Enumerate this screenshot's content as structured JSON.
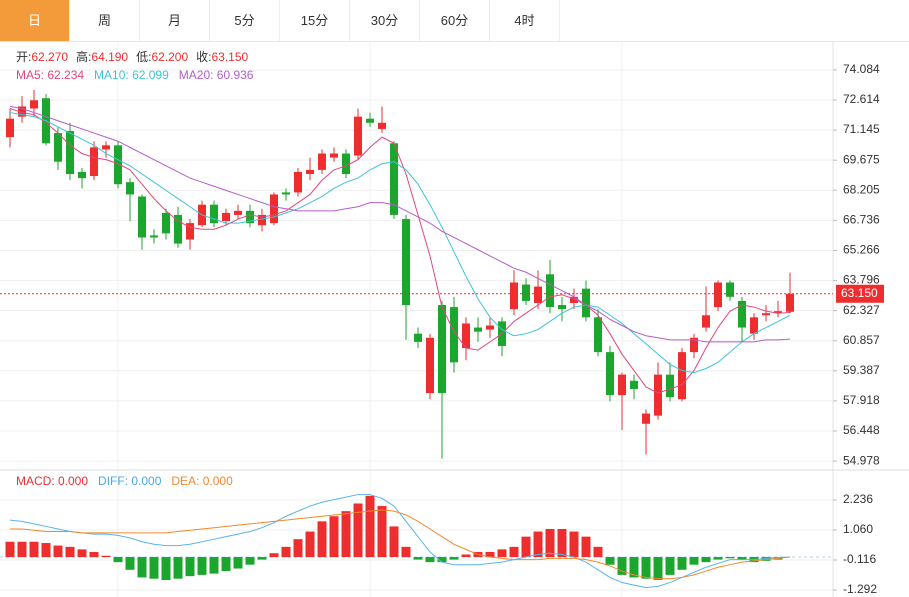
{
  "tabs": [
    "日",
    "周",
    "月",
    "5分",
    "15分",
    "30分",
    "60分",
    "4时"
  ],
  "active_tab": 0,
  "chart_data": [
    {
      "type": "candlestick",
      "info": [
        {
          "label": "开:",
          "value": "62.270"
        },
        {
          "label": "高:",
          "value": "64.190"
        },
        {
          "label": "低:",
          "value": "62.200"
        },
        {
          "label": "收:",
          "value": "63.150"
        }
      ],
      "legend": [
        "MA5: 62.234",
        "MA10: 62.099",
        "MA20: 60.936"
      ],
      "up_color": "#ee2e2e",
      "down_color": "#1ba62d",
      "open": [
        70.8,
        71.8,
        72.2,
        72.7,
        71.0,
        71.1,
        69.1,
        68.9,
        70.2,
        70.4,
        68.6,
        67.9,
        66.0,
        67.1,
        67.0,
        65.8,
        66.5,
        67.5,
        66.7,
        67.0,
        67.2,
        66.5,
        66.6,
        68.1,
        68.1,
        69.0,
        69.2,
        69.8,
        70.0,
        69.9,
        71.7,
        71.2,
        70.5,
        66.8,
        61.2,
        58.3,
        62.6,
        62.5,
        60.5,
        61.5,
        61.4,
        61.8,
        62.4,
        63.6,
        62.7,
        64.1,
        62.6,
        62.7,
        63.4,
        62.0,
        60.3,
        58.2,
        58.9,
        56.8,
        57.2,
        59.2,
        58.0,
        60.3,
        61.5,
        62.5,
        63.7,
        62.8,
        61.2,
        62.1,
        62.2,
        62.27
      ],
      "high": [
        72.2,
        72.8,
        73.1,
        72.9,
        71.3,
        71.5,
        69.3,
        70.6,
        70.6,
        70.6,
        68.8,
        68.0,
        66.3,
        67.3,
        67.4,
        66.8,
        67.7,
        67.7,
        67.3,
        67.5,
        67.5,
        67.3,
        68.1,
        68.3,
        69.3,
        69.8,
        70.2,
        70.3,
        70.2,
        72.2,
        72.0,
        72.3,
        70.6,
        67.0,
        61.5,
        61.2,
        62.8,
        63.0,
        62.0,
        62.0,
        62.0,
        62.0,
        64.3,
        63.9,
        64.3,
        64.8,
        63.0,
        63.4,
        63.8,
        62.4,
        60.6,
        59.3,
        59.2,
        57.5,
        59.8,
        59.8,
        60.5,
        61.2,
        63.5,
        63.8,
        63.8,
        63.0,
        62.2,
        62.6,
        62.8,
        64.19
      ],
      "low": [
        70.3,
        71.5,
        71.8,
        70.4,
        69.2,
        68.7,
        68.3,
        68.7,
        69.8,
        68.3,
        66.7,
        65.3,
        65.6,
        65.8,
        65.4,
        65.3,
        66.4,
        66.4,
        66.5,
        66.8,
        66.4,
        66.2,
        66.5,
        67.7,
        67.9,
        68.7,
        69.0,
        69.6,
        68.8,
        69.7,
        71.3,
        71.0,
        66.8,
        60.9,
        60.5,
        58.0,
        55.1,
        59.3,
        59.9,
        60.8,
        61.0,
        60.1,
        62.1,
        62.6,
        62.4,
        62.2,
        61.8,
        62.4,
        61.8,
        60.1,
        57.9,
        56.5,
        58.0,
        55.3,
        57.0,
        57.9,
        57.9,
        60.0,
        61.3,
        62.3,
        62.8,
        60.8,
        60.9,
        61.8,
        62.0,
        62.2
      ],
      "close": [
        71.7,
        72.3,
        72.6,
        70.5,
        69.6,
        69.0,
        68.8,
        70.3,
        70.4,
        68.5,
        68.0,
        65.9,
        65.9,
        66.1,
        65.6,
        66.6,
        67.5,
        66.6,
        67.1,
        67.2,
        66.6,
        67.0,
        68.0,
        68.0,
        69.1,
        69.2,
        70.0,
        70.0,
        69.0,
        71.8,
        71.5,
        71.5,
        67.0,
        62.6,
        60.8,
        61.0,
        58.3,
        59.8,
        61.7,
        61.3,
        61.6,
        60.6,
        63.7,
        62.8,
        63.5,
        62.5,
        62.4,
        63.0,
        62.0,
        60.3,
        58.2,
        59.2,
        58.5,
        57.3,
        59.2,
        58.1,
        60.3,
        61.0,
        62.1,
        63.7,
        63.0,
        61.5,
        62.0,
        62.2,
        62.3,
        63.15
      ],
      "series": [
        {
          "color": "#e2477d",
          "values": [
            72.2,
            72.0,
            71.9,
            71.5,
            71.0,
            70.4,
            70.0,
            69.8,
            69.7,
            69.5,
            69.2,
            68.5,
            67.8,
            67.2,
            66.7,
            66.4,
            66.3,
            66.3,
            66.5,
            66.8,
            67.0,
            66.9,
            67.0,
            67.2,
            67.6,
            68.0,
            68.7,
            69.2,
            69.4,
            69.7,
            70.3,
            70.8,
            70.5,
            69.0,
            67.0,
            65.0,
            62.5,
            61.3,
            60.5,
            60.4,
            60.8,
            61.2,
            61.8,
            62.2,
            62.6,
            63.0,
            63.1,
            62.9,
            62.6,
            62.1,
            61.2,
            60.2,
            59.4,
            58.6,
            58.3,
            58.5,
            58.7,
            59.4,
            60.5,
            61.5,
            62.3,
            62.6,
            62.5,
            62.3,
            62.2,
            62.234
          ]
        },
        {
          "color": "#3fc3d9",
          "values": [
            72.0,
            71.9,
            71.8,
            71.6,
            71.3,
            71.0,
            70.7,
            70.4,
            70.0,
            69.7,
            69.4,
            69.0,
            68.6,
            68.2,
            67.8,
            67.4,
            67.0,
            66.8,
            66.6,
            66.6,
            66.7,
            66.8,
            66.9,
            67.1,
            67.3,
            67.6,
            67.9,
            68.3,
            68.6,
            68.8,
            69.2,
            69.5,
            69.6,
            69.2,
            68.5,
            67.5,
            66.4,
            65.2,
            64.0,
            62.9,
            62.0,
            61.4,
            61.1,
            61.2,
            61.4,
            61.8,
            62.2,
            62.5,
            62.6,
            62.5,
            62.1,
            61.7,
            61.2,
            60.7,
            60.2,
            59.7,
            59.4,
            59.3,
            59.5,
            59.8,
            60.3,
            60.8,
            61.2,
            61.5,
            61.8,
            62.099
          ]
        },
        {
          "color": "#b45dc9",
          "values": [
            72.3,
            72.2,
            72.0,
            71.8,
            71.6,
            71.4,
            71.2,
            71.0,
            70.8,
            70.6,
            70.3,
            70.0,
            69.7,
            69.4,
            69.1,
            68.8,
            68.6,
            68.4,
            68.2,
            68.0,
            67.8,
            67.6,
            67.4,
            67.3,
            67.2,
            67.2,
            67.2,
            67.2,
            67.3,
            67.4,
            67.6,
            67.6,
            67.5,
            67.2,
            66.9,
            66.6,
            66.2,
            65.9,
            65.6,
            65.3,
            65.0,
            64.7,
            64.4,
            64.2,
            63.9,
            63.6,
            63.3,
            63.0,
            62.6,
            62.3,
            61.9,
            61.6,
            61.3,
            61.1,
            61.0,
            60.9,
            60.9,
            60.9,
            60.8,
            60.8,
            60.8,
            60.8,
            60.8,
            60.9,
            60.9,
            60.936
          ]
        }
      ],
      "last_price": 63.15,
      "last_price_label": "63.150",
      "ylim": [
        54.64,
        75.3
      ],
      "yticks": [
        74.084,
        72.614,
        71.145,
        69.675,
        68.205,
        66.736,
        65.266,
        63.796,
        62.327,
        60.857,
        59.387,
        57.918,
        56.448,
        54.978
      ],
      "grid": true
    },
    {
      "type": "macd",
      "legend": [
        "MACD: 0.000",
        "DIFF: 0.000",
        "DEA: 0.000"
      ],
      "legend_colors": [
        "#ee2e2e",
        "#4aa8e8",
        "#f08a2c"
      ],
      "up_color": "#ee2e2e",
      "down_color": "#1ba62d",
      "values": [
        0.6,
        0.6,
        0.6,
        0.55,
        0.45,
        0.4,
        0.3,
        0.2,
        0.05,
        -0.2,
        -0.5,
        -0.8,
        -0.85,
        -0.9,
        -0.85,
        -0.75,
        -0.7,
        -0.65,
        -0.55,
        -0.45,
        -0.3,
        -0.1,
        0.15,
        0.4,
        0.7,
        1.0,
        1.4,
        1.6,
        1.8,
        2.1,
        2.4,
        2.0,
        1.2,
        0.4,
        -0.1,
        -0.2,
        -0.2,
        -0.1,
        0.1,
        0.2,
        0.2,
        0.3,
        0.4,
        0.8,
        1.0,
        1.1,
        1.1,
        1.0,
        0.8,
        0.4,
        -0.3,
        -0.7,
        -0.8,
        -0.85,
        -0.9,
        -0.7,
        -0.5,
        -0.3,
        -0.2,
        -0.1,
        -0.05,
        -0.1,
        -0.2,
        -0.15,
        -0.1,
        0.0
      ],
      "series": [
        {
          "color": "#5ab4e8",
          "values": [
            1.45,
            1.4,
            1.3,
            1.2,
            1.1,
            1.0,
            0.95,
            0.9,
            0.9,
            0.85,
            0.75,
            0.6,
            0.5,
            0.45,
            0.45,
            0.5,
            0.6,
            0.7,
            0.8,
            0.9,
            1.0,
            1.15,
            1.35,
            1.6,
            1.8,
            2.0,
            2.15,
            2.25,
            2.35,
            2.45,
            2.45,
            2.3,
            2.0,
            1.4,
            0.8,
            0.2,
            -0.2,
            -0.3,
            -0.3,
            -0.3,
            -0.25,
            -0.2,
            -0.1,
            0.0,
            0.1,
            0.15,
            0.1,
            0.0,
            -0.2,
            -0.5,
            -0.8,
            -1.0,
            -1.1,
            -1.2,
            -1.15,
            -1.0,
            -0.8,
            -0.6,
            -0.4,
            -0.25,
            -0.1,
            -0.1,
            -0.1,
            -0.05,
            -0.02,
            0.0
          ]
        },
        {
          "color": "#f08a2c",
          "values": [
            1.1,
            1.1,
            1.05,
            1.0,
            1.0,
            1.0,
            0.95,
            0.95,
            0.95,
            0.95,
            0.95,
            0.95,
            0.95,
            0.95,
            1.0,
            1.05,
            1.1,
            1.15,
            1.2,
            1.25,
            1.3,
            1.35,
            1.4,
            1.45,
            1.5,
            1.55,
            1.6,
            1.65,
            1.7,
            1.75,
            1.8,
            1.85,
            1.8,
            1.65,
            1.4,
            1.1,
            0.8,
            0.5,
            0.3,
            0.1,
            0.0,
            -0.05,
            -0.1,
            -0.1,
            -0.1,
            -0.05,
            -0.05,
            -0.05,
            -0.1,
            -0.2,
            -0.35,
            -0.55,
            -0.7,
            -0.8,
            -0.85,
            -0.85,
            -0.8,
            -0.7,
            -0.55,
            -0.4,
            -0.3,
            -0.2,
            -0.15,
            -0.1,
            -0.05,
            0.0
          ]
        }
      ],
      "ylim": [
        -1.567,
        3.335
      ],
      "yticks": [
        2.236,
        {
          "value": 1.06,
          "label": "1.060"
        },
        -0.116,
        -1.292
      ],
      "grid": true
    }
  ]
}
